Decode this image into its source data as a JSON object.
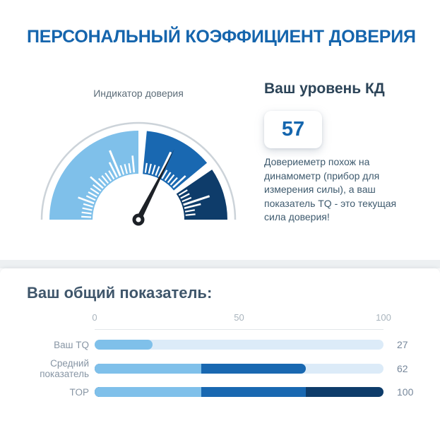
{
  "page": {
    "title": "ПЕРСОНАЛЬНЫЙ КОЭФФИЦИЕНТ ДОВЕРИЯ"
  },
  "kd_panel": {
    "heading": "Ваш уровень КД",
    "score": "57",
    "description": "Довериеметр похож на динамометр (прибор для измерения силы), а ваш показатель TQ - это текущая сила доверия!"
  },
  "overall_section": {
    "heading": "Ваш общий показатель:"
  },
  "colors": {
    "title_blue": "#1565ad",
    "light_blue": "#7fc0ea",
    "medium_blue": "#1968b1",
    "dark_navy": "#0e3c6a",
    "bar_track": "#dcebf8",
    "heading_dark": "#2c4458",
    "muted_gray": "#8795a4",
    "gauge_outline": "#ccd3d9",
    "needle_black": "#1d2127"
  },
  "chart_data": [
    {
      "type": "gauge",
      "title": "Индикатор доверия",
      "min": 0,
      "max": 100,
      "value": 57,
      "needle_fraction": 0.65,
      "zones": [
        {
          "name": "low",
          "from": 0,
          "to": 50,
          "color": "#7fc0ea",
          "long_tick_at": 37
        },
        {
          "name": "mid",
          "from": 53,
          "to": 78,
          "color": "#1968b1",
          "long_tick_at": 65
        },
        {
          "name": "high",
          "from": 81,
          "to": 100,
          "color": "#0e3c6a",
          "long_tick_at": 90
        }
      ]
    },
    {
      "type": "bar",
      "title": "Ваш общий показатель:",
      "xlim": [
        0,
        100
      ],
      "x_ticks": [
        "0",
        "50",
        "100"
      ],
      "grid": false,
      "rows": [
        {
          "label": "Ваш TQ",
          "value": 27,
          "segments": [
            {
              "end_pct": 20,
              "color": "#7fc0ea"
            }
          ]
        },
        {
          "label": "Средний показатель",
          "value": 62,
          "segments": [
            {
              "end_pct": 37,
              "color": "#7fc0ea"
            },
            {
              "end_pct": 73,
              "color": "#1968b1"
            }
          ]
        },
        {
          "label": "TOP",
          "value": 100,
          "segments": [
            {
              "end_pct": 37,
              "color": "#7fc0ea"
            },
            {
              "end_pct": 73,
              "color": "#1968b1"
            },
            {
              "end_pct": 100,
              "color": "#0e3c6a"
            }
          ]
        }
      ]
    }
  ]
}
